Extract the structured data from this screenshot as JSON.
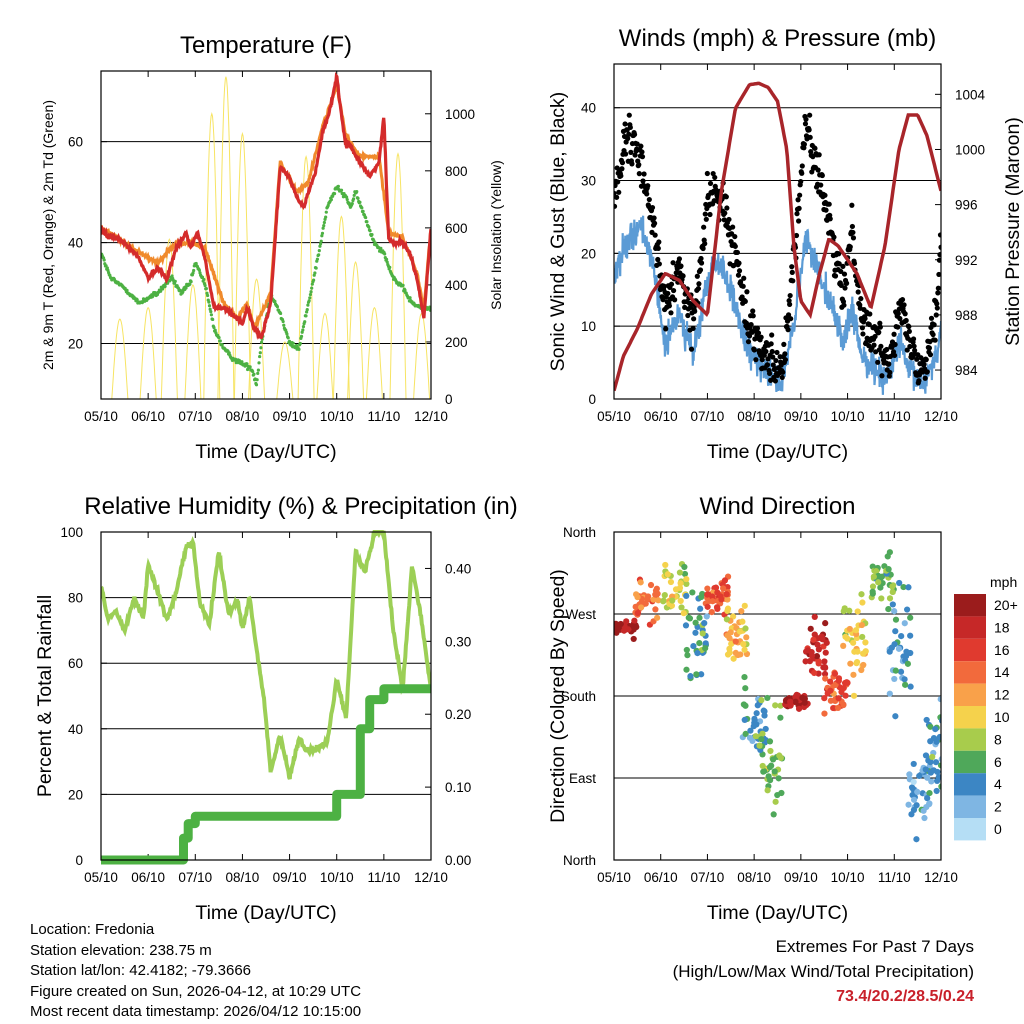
{
  "colors": {
    "temp2m": "#d42b2b",
    "temp9m": "#f08a2c",
    "dewpoint": "#4db143",
    "solar": "#f7e463",
    "wind": "#5b9bd5",
    "gust": "#000000",
    "pressure": "#a8252a",
    "rh": "#9ccf56",
    "precip": "#4db143"
  },
  "chart_data": [
    {
      "id": "temperature",
      "type": "line",
      "title": "Temperature (F)",
      "xlabel": "Time (Day/UTC)",
      "ylabel": "2m & 9m T (Red, Orange) & 2m Td (Green)",
      "y2label": "Solar Insolation (Yellow)",
      "x_ticks": [
        "05/10",
        "06/10",
        "07/10",
        "08/10",
        "09/10",
        "10/10",
        "11/10",
        "12/10"
      ],
      "ylim": [
        9,
        74
      ],
      "y_ticks": [
        20,
        40,
        60
      ],
      "y2lim": [
        0,
        1150
      ],
      "y2_ticks": [
        0,
        200,
        400,
        600,
        800,
        1000
      ],
      "series": [
        {
          "name": "2m T",
          "color_key": "temp2m",
          "x": [
            0,
            0.15,
            0.35,
            0.6,
            0.8,
            1.0,
            1.2,
            1.4,
            1.6,
            1.8,
            1.9,
            2.05,
            2.2,
            2.4,
            2.6,
            2.75,
            2.9,
            3.0,
            3.1,
            3.25,
            3.4,
            3.6,
            3.8,
            4.0,
            4.15,
            4.3,
            4.4,
            4.55,
            4.7,
            4.85,
            5.0,
            5.1,
            5.2,
            5.25,
            5.35,
            5.5,
            5.7,
            5.9,
            6.0,
            6.1,
            6.2,
            6.4,
            6.55,
            6.7,
            6.85,
            7.0
          ],
          "values": [
            43,
            41,
            41,
            39,
            37,
            33,
            35,
            33,
            39,
            42,
            39,
            42,
            37,
            27,
            27,
            26,
            25,
            24,
            27,
            23,
            21,
            28,
            55,
            53,
            49,
            47,
            50,
            54,
            62,
            66,
            73,
            65,
            59,
            60,
            58,
            56,
            53,
            56,
            65,
            41,
            40,
            40,
            38,
            33,
            25,
            43
          ]
        },
        {
          "name": "9m T",
          "color_key": "temp9m",
          "x": [
            0,
            0.35,
            0.8,
            1.2,
            1.6,
            1.9,
            2.2,
            2.6,
            2.9,
            3.1,
            3.25,
            3.6,
            3.8,
            4.15,
            4.4,
            4.7,
            5.0,
            5.2,
            5.5,
            5.9,
            6.1,
            6.4,
            6.7,
            6.85,
            7.0
          ],
          "values": [
            43,
            41,
            38,
            36,
            40,
            40,
            39,
            28,
            25,
            28,
            23,
            30,
            56,
            50,
            52,
            63,
            71,
            61,
            57,
            57,
            42,
            41,
            34,
            27,
            43
          ]
        },
        {
          "name": "2m Td",
          "color_key": "dewpoint",
          "x": [
            0,
            0.2,
            0.5,
            0.8,
            1.0,
            1.2,
            1.5,
            1.7,
            1.9,
            2.0,
            2.2,
            2.4,
            2.6,
            2.8,
            3.0,
            3.2,
            3.3,
            3.4,
            3.6,
            3.8,
            4.0,
            4.2,
            4.4,
            4.6,
            4.8,
            5.0,
            5.2,
            5.3,
            5.4,
            5.6,
            5.8,
            6.0,
            6.2,
            6.4,
            6.6,
            6.8,
            7.0
          ],
          "values": [
            38,
            33,
            31,
            28,
            29,
            30,
            33,
            30,
            32,
            36,
            32,
            23,
            19,
            17,
            16,
            15,
            12,
            20,
            30,
            26,
            20,
            19,
            28,
            37,
            47,
            51,
            49,
            47,
            50,
            45,
            40,
            38,
            33,
            31,
            28,
            27,
            27
          ]
        },
        {
          "name": "Solar Insolation",
          "color_key": "solar",
          "axis": "y2",
          "peak_x": [
            0.4,
            1.0,
            1.45,
            1.95,
            2.35,
            2.65,
            3.0,
            3.3,
            3.9,
            4.35,
            4.75,
            5.1,
            5.4,
            5.8,
            6.3,
            6.8
          ],
          "peak_values": [
            280,
            320,
            560,
            400,
            1000,
            1130,
            930,
            420,
            200,
            850,
            300,
            640,
            480,
            320,
            860,
            300
          ]
        }
      ]
    },
    {
      "id": "winds",
      "type": "scatter",
      "title": "Winds (mph) & Pressure (mb)",
      "xlabel": "Time (Day/UTC)",
      "ylabel": "Sonic Wind & Gust (Blue, Black)",
      "y2label": "Station Pressure (Maroon)",
      "x_ticks": [
        "05/10",
        "06/10",
        "07/10",
        "08/10",
        "09/10",
        "10/10",
        "11/10",
        "12/10"
      ],
      "ylim": [
        0,
        46
      ],
      "y_ticks": [
        0,
        10,
        20,
        30,
        40
      ],
      "y2lim": [
        981.9,
        1006.2
      ],
      "y2_ticks": [
        984,
        988,
        992,
        996,
        1000,
        1004
      ],
      "series": [
        {
          "name": "Sonic Wind",
          "color_key": "wind",
          "x": [
            0,
            0.3,
            0.6,
            0.9,
            1.1,
            1.4,
            1.7,
            2.0,
            2.2,
            2.4,
            2.7,
            2.9,
            3.1,
            3.3,
            3.6,
            3.9,
            4.1,
            4.3,
            4.6,
            4.9,
            5.1,
            5.3,
            5.6,
            5.9,
            6.1,
            6.3,
            6.6,
            6.9,
            7.0
          ],
          "values": [
            17,
            22,
            24,
            16,
            7,
            12,
            6,
            16,
            19,
            17,
            10,
            6,
            5,
            4,
            2,
            12,
            22,
            19,
            14,
            8,
            12,
            6,
            4,
            3,
            8,
            4,
            2,
            6,
            10
          ]
        },
        {
          "name": "Gust",
          "color_key": "gust",
          "x": [
            0,
            0.3,
            0.6,
            0.9,
            1.1,
            1.4,
            1.7,
            2.0,
            2.2,
            2.4,
            2.7,
            2.9,
            3.1,
            3.3,
            3.6,
            3.9,
            4.1,
            4.3,
            4.6,
            4.9,
            5.1,
            5.3,
            5.6,
            5.9,
            6.1,
            6.3,
            6.6,
            6.9,
            7.0
          ],
          "values": [
            28,
            36,
            32,
            22,
            12,
            18,
            10,
            27,
            29,
            25,
            17,
            10,
            8,
            6,
            4,
            22,
            38,
            33,
            24,
            14,
            24,
            11,
            8,
            5,
            14,
            8,
            4,
            12,
            22
          ]
        },
        {
          "name": "Station Pressure",
          "color_key": "pressure",
          "axis": "y2",
          "x": [
            0,
            0.2,
            0.5,
            0.8,
            1.1,
            1.4,
            1.7,
            2.0,
            2.3,
            2.6,
            2.9,
            3.1,
            3.3,
            3.5,
            3.7,
            3.85,
            4.0,
            4.2,
            4.4,
            4.6,
            4.8,
            5.0,
            5.2,
            5.5,
            5.8,
            6.1,
            6.3,
            6.5,
            6.7,
            6.85,
            7.0
          ],
          "values": [
            982.5,
            985,
            987,
            989.5,
            991,
            990.5,
            989,
            988,
            997,
            1003,
            1004.7,
            1004.8,
            1004.5,
            1003.5,
            1000,
            993,
            989,
            988,
            991,
            993.5,
            993,
            992,
            991,
            988.5,
            993,
            1000,
            1002.5,
            1002.5,
            1001,
            999,
            997
          ]
        }
      ]
    },
    {
      "id": "humidity",
      "type": "line",
      "title": "Relative Humidity (%) & Precipitation (in)",
      "xlabel": "Time (Day/UTC)",
      "ylabel": "Percent & Total Rainfall",
      "x_ticks": [
        "05/10",
        "06/10",
        "07/10",
        "08/10",
        "09/10",
        "10/10",
        "11/10",
        "12/10"
      ],
      "ylim": [
        0,
        100
      ],
      "y_ticks": [
        0,
        20,
        40,
        60,
        80,
        100
      ],
      "y2lim": [
        0,
        0.45
      ],
      "y2_ticks": [
        "0.00",
        "0.10",
        "0.20",
        "0.30",
        "0.40"
      ],
      "series": [
        {
          "name": "Relative Humidity",
          "color_key": "rh",
          "x": [
            0,
            0.15,
            0.3,
            0.5,
            0.7,
            0.9,
            1.0,
            1.2,
            1.4,
            1.6,
            1.8,
            1.95,
            2.1,
            2.3,
            2.5,
            2.7,
            2.9,
            3.0,
            3.15,
            3.3,
            3.45,
            3.6,
            3.8,
            4.0,
            4.2,
            4.4,
            4.6,
            4.8,
            5.0,
            5.2,
            5.4,
            5.6,
            5.8,
            6.0,
            6.2,
            6.4,
            6.6,
            6.8,
            7.0
          ],
          "values": [
            84,
            73,
            76,
            70,
            80,
            74,
            90,
            82,
            73,
            82,
            95,
            97,
            78,
            72,
            94,
            75,
            79,
            70,
            80,
            64,
            50,
            27,
            38,
            25,
            37,
            33,
            34,
            36,
            55,
            43,
            94,
            88,
            100,
            100,
            70,
            52,
            90,
            73,
            52
          ]
        },
        {
          "name": "Total Precipitation",
          "color_key": "precip",
          "axis": "y2",
          "x": [
            0,
            1.7,
            1.75,
            1.85,
            2.0,
            2.5,
            3.0,
            3.5,
            4.0,
            4.5,
            4.9,
            5.0,
            5.3,
            5.5,
            5.7,
            5.9,
            6.0,
            6.5,
            7.0
          ],
          "values": [
            0,
            0,
            0.03,
            0.05,
            0.06,
            0.06,
            0.06,
            0.06,
            0.06,
            0.06,
            0.06,
            0.09,
            0.09,
            0.18,
            0.22,
            0.22,
            0.235,
            0.235,
            0.235
          ]
        }
      ]
    },
    {
      "id": "wind_direction",
      "type": "scatter",
      "title": "Wind Direction",
      "xlabel": "Time (Day/UTC)",
      "ylabel": "Direction (Colored By Speed)",
      "x_ticks": [
        "05/10",
        "06/10",
        "07/10",
        "08/10",
        "09/10",
        "10/10",
        "11/10",
        "12/10"
      ],
      "y_categories": [
        "North",
        "East",
        "South",
        "West",
        "North"
      ],
      "ylim": [
        0,
        360
      ],
      "colorbar": {
        "title": "mph",
        "labels": [
          "20+",
          "18",
          "16",
          "14",
          "12",
          "10",
          "8",
          "6",
          "4",
          "2",
          "0"
        ],
        "colors": [
          "#9b1c1c",
          "#c62828",
          "#e03a2f",
          "#f26a3c",
          "#f9a14a",
          "#f5d24c",
          "#a8cc4c",
          "#4fa85a",
          "#3c86c4",
          "#7fb6e3",
          "#b5def5"
        ]
      },
      "clusters": [
        {
          "x": 0.25,
          "dir": 255,
          "spread": 10,
          "speed": 20
        },
        {
          "x": 0.7,
          "dir": 285,
          "spread": 22,
          "speed": 14
        },
        {
          "x": 1.3,
          "dir": 300,
          "spread": 30,
          "speed": 9
        },
        {
          "x": 1.75,
          "dir": 250,
          "spread": 60,
          "speed": 5
        },
        {
          "x": 2.2,
          "dir": 290,
          "spread": 25,
          "speed": 15
        },
        {
          "x": 2.65,
          "dir": 250,
          "spread": 40,
          "speed": 11
        },
        {
          "x": 3.0,
          "dir": 150,
          "spread": 40,
          "speed": 4
        },
        {
          "x": 3.35,
          "dir": 110,
          "spread": 60,
          "speed": 7
        },
        {
          "x": 3.9,
          "dir": 175,
          "spread": 8,
          "speed": 19
        },
        {
          "x": 4.35,
          "dir": 230,
          "spread": 35,
          "speed": 18
        },
        {
          "x": 4.75,
          "dir": 185,
          "spread": 25,
          "speed": 15
        },
        {
          "x": 5.15,
          "dir": 240,
          "spread": 50,
          "speed": 10
        },
        {
          "x": 5.75,
          "dir": 310,
          "spread": 25,
          "speed": 7
        },
        {
          "x": 6.1,
          "dir": 230,
          "spread": 80,
          "speed": 4
        },
        {
          "x": 6.55,
          "dir": 70,
          "spread": 45,
          "speed": 3
        },
        {
          "x": 6.9,
          "dir": 120,
          "spread": 50,
          "speed": 4
        }
      ]
    }
  ],
  "footer": {
    "location": "Location: Fredonia",
    "elevation": "Station elevation: 238.75 m",
    "latlon": "Station lat/lon: 42.4182; -79.3666",
    "created": "Figure created on Sun, 2026-04-12, at 10:29 UTC",
    "recent": "Most recent data timestamp: 2026/04/12 10:15:00"
  },
  "extremes": {
    "title": "Extremes For Past 7 Days",
    "subtitle": "(High/Low/Max Wind/Total Precipitation)",
    "values": "73.4/20.2/28.5/0.24"
  }
}
